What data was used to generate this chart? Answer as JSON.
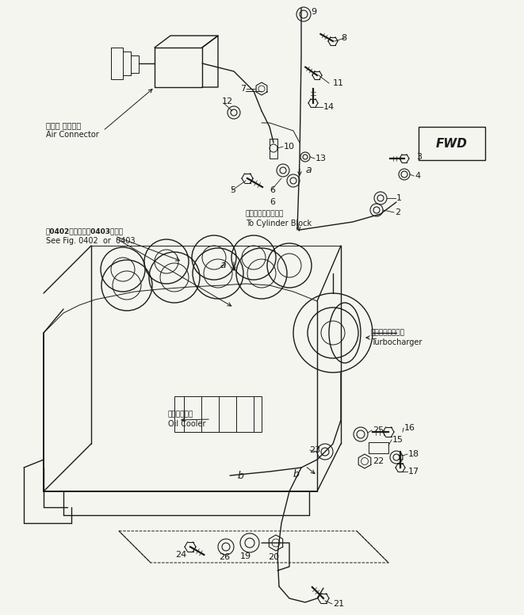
{
  "bg_color": "#f5f5f0",
  "line_color": "#1a1a1a",
  "fig_width": 6.61,
  "fig_height": 7.76,
  "dpi": 100,
  "labels": {
    "air_connector_jp": "エアー コネクタ",
    "air_connector_en": "Air Connector",
    "see_fig_jp": "㑻0402図または㑻0403図参照",
    "see_fig_en": "See Fig. 0402  or  0403",
    "cylinder_block_jp": "シリンダブロックへ",
    "cylinder_block_en": "To Cylinder Block",
    "turbocharger_jp": "ターボチャージャ",
    "turbocharger_en": "Turbocharger",
    "oil_cooler_jp": "オイルクーラ",
    "oil_cooler_en": "Oil Cooler",
    "fwd": "FWD"
  }
}
